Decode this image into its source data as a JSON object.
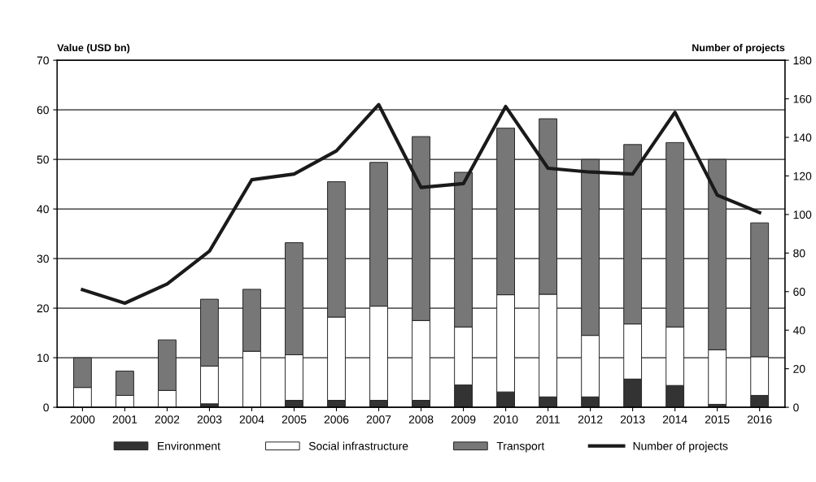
{
  "chart_data": {
    "type": "bar",
    "stacked": true,
    "categories": [
      "2000",
      "2001",
      "2002",
      "2003",
      "2004",
      "2005",
      "2006",
      "2007",
      "2008",
      "2009",
      "2010",
      "2011",
      "2012",
      "2013",
      "2014",
      "2015",
      "2016"
    ],
    "series": [
      {
        "name": "Environment",
        "color": "#333333",
        "values": [
          0,
          0,
          0,
          0.7,
          0,
          1.4,
          1.4,
          1.4,
          1.4,
          4.5,
          3.1,
          2.1,
          2.1,
          5.7,
          4.4,
          0.6,
          2.4
        ]
      },
      {
        "name": "Social infrastructure",
        "color": "#ffffff",
        "values": [
          4,
          2.4,
          3.4,
          7.6,
          11.3,
          9.2,
          16.8,
          19,
          16.1,
          11.7,
          19.6,
          20.7,
          12.4,
          11.1,
          11.8,
          11,
          7.8
        ]
      },
      {
        "name": "Transport",
        "color": "#777777",
        "values": [
          6,
          4.9,
          10.2,
          13.5,
          12.5,
          22.6,
          27.3,
          29,
          37.1,
          31.2,
          33.6,
          35.4,
          35.5,
          36.2,
          37.2,
          38.4,
          27
        ]
      },
      {
        "name": "Number of projects",
        "type": "line",
        "axis": "y2",
        "color": "#1a1a1a",
        "values": [
          61,
          54,
          64,
          81,
          118,
          121,
          133,
          157,
          114,
          116,
          156,
          124,
          122,
          121,
          153,
          110,
          101
        ]
      }
    ],
    "ylabel": "Value (USD bn)",
    "y2label": "Number of projects",
    "ylim": [
      0,
      70
    ],
    "yticks": [
      0,
      10,
      20,
      30,
      40,
      50,
      60,
      70
    ],
    "y2lim": [
      0,
      180
    ],
    "y2ticks": [
      0,
      20,
      40,
      60,
      80,
      100,
      120,
      140,
      160,
      180
    ],
    "grid": "y",
    "legend": "bottom"
  }
}
